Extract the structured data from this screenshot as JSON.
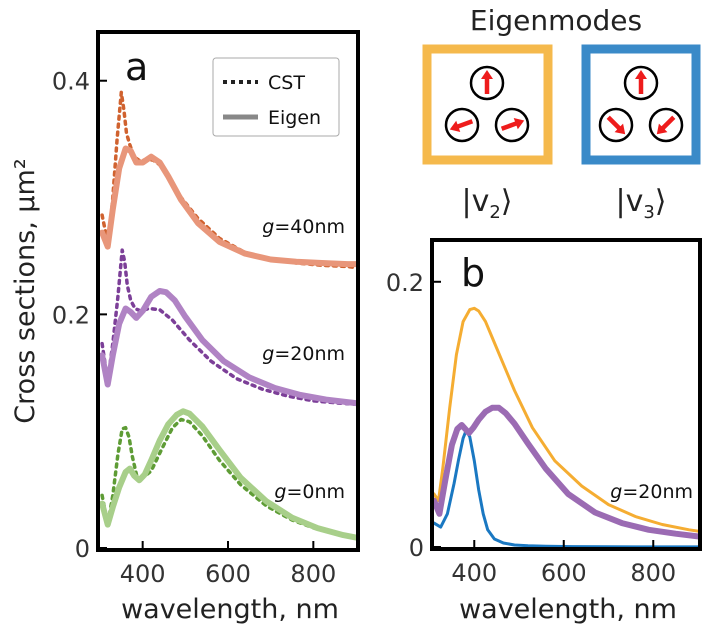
{
  "chart_data": [
    {
      "type": "line",
      "panel": "a",
      "xlabel": "wavelength, nm",
      "ylabel": "Cross sections, μm²",
      "xlim": [
        300,
        900
      ],
      "ylim": [
        0,
        0.44
      ],
      "x_ticks": [
        "400",
        "600",
        "800"
      ],
      "y_ticks": [
        "0",
        "0.2",
        "0.4"
      ],
      "legend": {
        "position": "top-right",
        "entries": [
          {
            "label": "CST",
            "style": "dotted"
          },
          {
            "label": "Eigen",
            "style": "solid"
          }
        ]
      },
      "annotations": [
        {
          "label": "g=40nm",
          "italic_part": "g",
          "rest": "=40nm"
        },
        {
          "label": "g=20nm",
          "italic_part": "g",
          "rest": "=20nm"
        },
        {
          "label": "g=0nm",
          "italic_part": "g",
          "rest": "=0nm"
        }
      ],
      "series": [
        {
          "group": "g=40nm",
          "method": "CST",
          "color": "#d0622f",
          "x": [
            305,
            320,
            330,
            340,
            350,
            356,
            362,
            370,
            380,
            395,
            410,
            425,
            440,
            460,
            490,
            530,
            580,
            640,
            700,
            760,
            820,
            880,
            900
          ],
          "y": [
            0.285,
            0.258,
            0.3,
            0.35,
            0.39,
            0.375,
            0.355,
            0.345,
            0.335,
            0.331,
            0.333,
            0.332,
            0.328,
            0.318,
            0.3,
            0.282,
            0.265,
            0.253,
            0.247,
            0.244,
            0.242,
            0.241,
            0.24
          ]
        },
        {
          "group": "g=40nm",
          "method": "Eigen",
          "color": "#e8967a",
          "x": [
            305,
            318,
            330,
            345,
            360,
            372,
            385,
            400,
            420,
            440,
            460,
            490,
            530,
            580,
            640,
            700,
            760,
            820,
            880,
            900
          ],
          "y": [
            0.27,
            0.258,
            0.29,
            0.325,
            0.342,
            0.34,
            0.33,
            0.33,
            0.335,
            0.33,
            0.318,
            0.298,
            0.278,
            0.262,
            0.252,
            0.247,
            0.245,
            0.244,
            0.243,
            0.243
          ]
        },
        {
          "group": "g=20nm",
          "method": "CST",
          "color": "#7c3f98",
          "x": [
            305,
            318,
            330,
            342,
            352,
            358,
            364,
            372,
            382,
            395,
            415,
            440,
            470,
            510,
            560,
            620,
            680,
            740,
            800,
            860,
            900
          ],
          "y": [
            0.175,
            0.143,
            0.175,
            0.215,
            0.255,
            0.245,
            0.225,
            0.212,
            0.205,
            0.203,
            0.205,
            0.204,
            0.195,
            0.178,
            0.16,
            0.145,
            0.136,
            0.13,
            0.126,
            0.124,
            0.123
          ]
        },
        {
          "group": "g=20nm",
          "method": "Eigen",
          "color": "#b083c4",
          "x": [
            305,
            318,
            330,
            345,
            360,
            372,
            385,
            400,
            420,
            440,
            455,
            475,
            500,
            540,
            590,
            650,
            710,
            770,
            830,
            900
          ],
          "y": [
            0.165,
            0.14,
            0.165,
            0.192,
            0.205,
            0.202,
            0.197,
            0.203,
            0.215,
            0.22,
            0.219,
            0.212,
            0.198,
            0.178,
            0.16,
            0.146,
            0.137,
            0.131,
            0.127,
            0.124
          ]
        },
        {
          "group": "g=0nm",
          "method": "CST",
          "color": "#5e9c35",
          "x": [
            305,
            318,
            330,
            342,
            352,
            360,
            368,
            376,
            386,
            400,
            420,
            445,
            470,
            490,
            510,
            540,
            580,
            630,
            690,
            750,
            810,
            870,
            900
          ],
          "y": [
            0.045,
            0.02,
            0.045,
            0.08,
            0.102,
            0.103,
            0.095,
            0.078,
            0.062,
            0.06,
            0.066,
            0.085,
            0.103,
            0.11,
            0.108,
            0.096,
            0.075,
            0.054,
            0.036,
            0.024,
            0.016,
            0.011,
            0.009
          ]
        },
        {
          "group": "g=0nm",
          "method": "Eigen",
          "color": "#a8cf8a",
          "x": [
            305,
            318,
            330,
            345,
            360,
            370,
            380,
            392,
            405,
            420,
            440,
            460,
            480,
            495,
            510,
            540,
            580,
            630,
            690,
            750,
            810,
            870,
            900
          ],
          "y": [
            0.038,
            0.02,
            0.035,
            0.052,
            0.065,
            0.068,
            0.062,
            0.058,
            0.063,
            0.075,
            0.092,
            0.106,
            0.114,
            0.117,
            0.115,
            0.104,
            0.084,
            0.06,
            0.04,
            0.026,
            0.017,
            0.011,
            0.009
          ]
        }
      ]
    },
    {
      "type": "line",
      "panel": "b",
      "xlabel": "wavelength, nm",
      "xlim": [
        310,
        900
      ],
      "ylim": [
        0,
        0.23
      ],
      "x_ticks": [
        "400",
        "600",
        "800"
      ],
      "y_ticks": [
        "0",
        "0.2"
      ],
      "annotations": [
        {
          "label": "g=20nm",
          "italic_part": "g",
          "rest": "=20nm"
        }
      ],
      "series": [
        {
          "mode": "v2",
          "color": "#f5ad32",
          "x": [
            310,
            320,
            330,
            345,
            360,
            375,
            390,
            400,
            410,
            425,
            440,
            460,
            490,
            530,
            580,
            640,
            700,
            760,
            820,
            880,
            900
          ],
          "y": [
            0.04,
            0.035,
            0.06,
            0.105,
            0.145,
            0.17,
            0.179,
            0.18,
            0.178,
            0.17,
            0.158,
            0.142,
            0.118,
            0.09,
            0.065,
            0.046,
            0.032,
            0.023,
            0.017,
            0.013,
            0.012
          ]
        },
        {
          "mode": "v3",
          "color": "#1a78c2",
          "x": [
            310,
            325,
            340,
            355,
            365,
            375,
            382,
            390,
            400,
            410,
            420,
            430,
            445,
            465,
            490,
            520,
            560,
            620,
            700,
            800,
            900
          ],
          "y": [
            0.018,
            0.015,
            0.025,
            0.048,
            0.066,
            0.082,
            0.088,
            0.083,
            0.065,
            0.043,
            0.025,
            0.013,
            0.006,
            0.003,
            0.0015,
            0.001,
            0.0006,
            0.0003,
            0.0002,
            0.0001,
            0.0001
          ]
        },
        {
          "mode": "sum",
          "color": "#9b6bb3",
          "x": [
            310,
            322,
            335,
            350,
            362,
            372,
            380,
            388,
            398,
            410,
            425,
            440,
            455,
            470,
            490,
            520,
            560,
            610,
            670,
            730,
            790,
            850,
            900
          ],
          "y": [
            0.035,
            0.025,
            0.05,
            0.077,
            0.089,
            0.092,
            0.089,
            0.086,
            0.09,
            0.096,
            0.102,
            0.105,
            0.105,
            0.101,
            0.093,
            0.078,
            0.059,
            0.04,
            0.026,
            0.018,
            0.013,
            0.01,
            0.008
          ]
        }
      ]
    }
  ],
  "eigenmodes": {
    "title": "Eigenmodes",
    "modes": [
      {
        "ket": "v",
        "subscript": "2",
        "border_color": "#f5b94c",
        "arrow_color": "#ee1c1c"
      },
      {
        "ket": "v",
        "subscript": "3",
        "border_color": "#3a8ac8",
        "arrow_color": "#ee1c1c"
      }
    ]
  }
}
